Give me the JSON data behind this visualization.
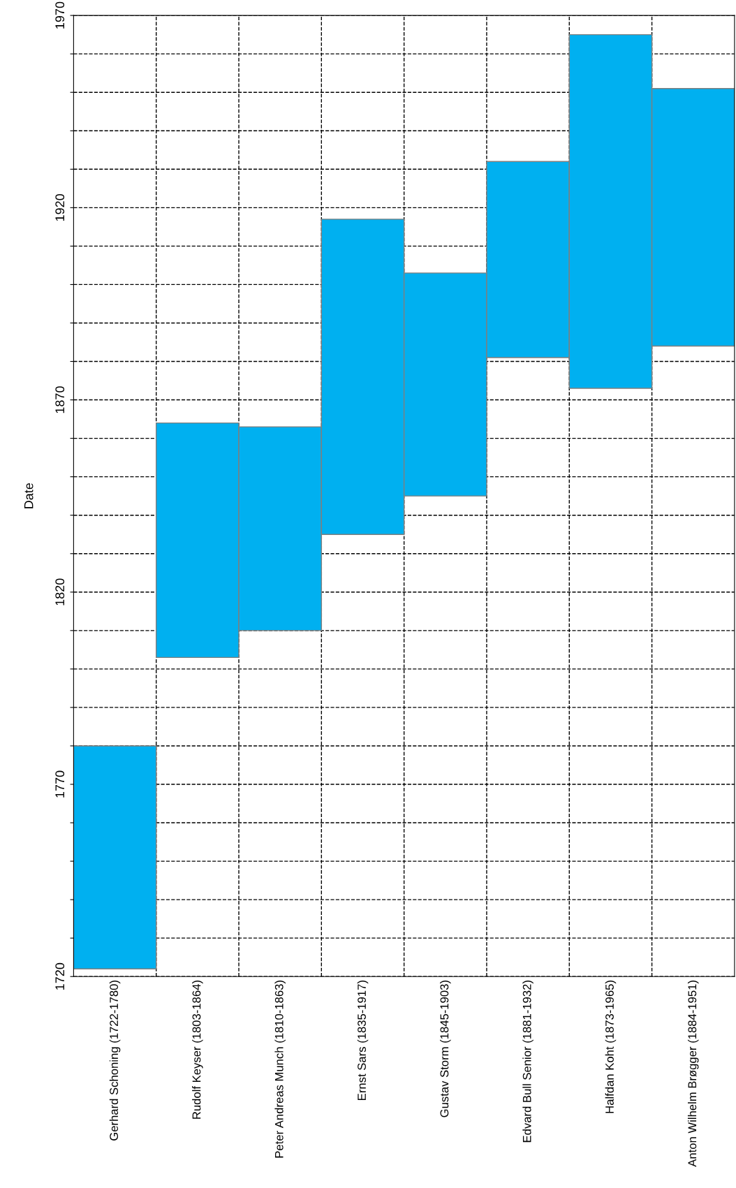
{
  "chart_data": {
    "type": "bar",
    "ylabel": "Date",
    "categories": [
      "Gerhard Schoning (1722-1780)",
      "Rudolf Keyser (1803-1864)",
      "Peter Andreas Munch (1810-1863)",
      "Ernst Sars (1835-1917)",
      "Gustav Storm (1845-1903)",
      "Edvard Bull Senior (1881-1932)",
      "Halfdan Koht (1873-1965)",
      "Anton Wilhelm Brøgger (1884-1951)"
    ],
    "base": [
      1722,
      1803,
      1810,
      1835,
      1845,
      1881,
      1873,
      1884
    ],
    "values": [
      58,
      61,
      53,
      82,
      58,
      51,
      92,
      67
    ],
    "color": "#00b0f0",
    "ylim": [
      1720,
      1970
    ],
    "yticks": [
      1720,
      {
        "value": 1730,
        "label": null
      },
      {
        "value": 1740,
        "label": null
      },
      {
        "value": 1750,
        "label": null
      },
      {
        "value": 1760,
        "label": null
      },
      1770,
      {
        "value": 1780,
        "label": null
      },
      {
        "value": 1790,
        "label": null
      },
      {
        "value": 1800,
        "label": null
      },
      {
        "value": 1810,
        "label": null
      },
      1820,
      {
        "value": 1830,
        "label": null
      },
      {
        "value": 1840,
        "label": null
      },
      {
        "value": 1850,
        "label": null
      },
      {
        "value": 1860,
        "label": null
      },
      1870,
      {
        "value": 1880,
        "label": null
      },
      {
        "value": 1890,
        "label": null
      },
      {
        "value": 1900,
        "label": null
      },
      {
        "value": 1910,
        "label": null
      },
      1920,
      {
        "value": 1930,
        "label": null
      },
      {
        "value": 1940,
        "label": null
      },
      {
        "value": 1950,
        "label": null
      },
      {
        "value": 1960,
        "label": null
      },
      1970
    ],
    "grid": true
  }
}
